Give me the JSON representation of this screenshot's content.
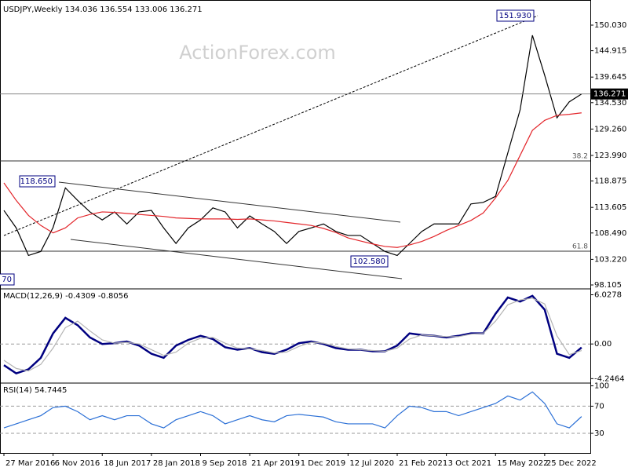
{
  "chart_data": [
    {
      "type": "line",
      "title": "USDJPY,Weekly  134.036 136.554 133.006 136.271",
      "watermark": "ActionForex.com",
      "x": [
        0,
        8,
        16,
        24,
        32,
        40,
        48,
        56,
        64,
        72,
        80,
        88,
        96,
        104,
        112,
        120,
        128,
        136,
        144,
        152,
        160,
        168,
        176,
        184,
        192,
        200,
        208,
        216,
        224,
        232,
        240,
        248,
        256,
        264,
        272,
        280,
        288,
        296,
        304,
        312,
        320,
        328,
        336,
        344,
        352,
        360,
        368,
        376
      ],
      "xlim": [
        -2.55,
        381.7
      ],
      "ylim": [
        97.32,
        155.05
      ],
      "yticks": [
        {
          "value": 150.03,
          "label": "150.030"
        },
        {
          "value": 144.915,
          "label": "144.915"
        },
        {
          "value": 139.645,
          "label": "139.645"
        },
        {
          "value": 134.53,
          "label": "134.530"
        },
        {
          "value": 129.26,
          "label": "129.260"
        },
        {
          "value": 123.99,
          "label": "123.990"
        },
        {
          "value": 118.875,
          "label": "118.875"
        },
        {
          "value": 113.605,
          "label": "113.605"
        },
        {
          "value": 108.49,
          "label": "108.490"
        },
        {
          "value": 103.22,
          "label": "103.220"
        },
        {
          "value": 98.105,
          "label": "98.105"
        }
      ],
      "series": [
        {
          "name": "USDJPY",
          "color": "#000000",
          "values": [
            113,
            109.5,
            104,
            104.8,
            109.6,
            117.5,
            115,
            112.7,
            111.1,
            112.7,
            110.3,
            112.7,
            113,
            109.5,
            106.4,
            109.5,
            111.1,
            113.5,
            112.7,
            109.5,
            111.9,
            110.3,
            108.8,
            106.4,
            108.8,
            109.5,
            110.3,
            108.8,
            108,
            108,
            106.4,
            104.8,
            104,
            106.4,
            108.8,
            110.3,
            110.3,
            110.3,
            114.3,
            114.6,
            115.8,
            124.5,
            133.1,
            148,
            140,
            131.5,
            134.7,
            136.271
          ]
        },
        {
          "name": "MA",
          "color": "#e3262b",
          "values": [
            118.5,
            115,
            112,
            110,
            108.5,
            109.5,
            111.5,
            112.2,
            112.7,
            112.6,
            112.4,
            112.2,
            112,
            111.8,
            111.5,
            111.4,
            111.3,
            111.3,
            111.3,
            111.2,
            111.3,
            111.1,
            110.9,
            110.6,
            110.3,
            110,
            109.4,
            108.6,
            107.5,
            106.9,
            106.3,
            105.8,
            105.6,
            106.1,
            106.8,
            107.8,
            109,
            110,
            111,
            112.5,
            115.5,
            119,
            124,
            129,
            131,
            132,
            132.2,
            132.5
          ]
        }
      ],
      "levels": [
        {
          "value": 122.9,
          "label": "38.2"
        },
        {
          "value": 104.85,
          "label": "61.8"
        }
      ],
      "annotations": [
        "118.650",
        "151.930",
        "102.580",
        "70"
      ]
    },
    {
      "type": "line",
      "title": "MACD(12,26,9) -0.4309 -0.8056",
      "x": [
        0,
        8,
        16,
        24,
        32,
        40,
        48,
        56,
        64,
        72,
        80,
        88,
        96,
        104,
        112,
        120,
        128,
        136,
        144,
        152,
        160,
        168,
        176,
        184,
        192,
        200,
        208,
        216,
        224,
        232,
        240,
        248,
        256,
        264,
        272,
        280,
        288,
        296,
        304,
        312,
        320,
        328,
        336,
        344,
        352,
        360,
        368,
        376
      ],
      "xlim": [
        -2.55,
        381.7
      ],
      "ylim": [
        -4.79,
        6.75
      ],
      "yticks": [
        6.0278,
        {
          "value": 0,
          "label": "0.00"
        },
        -4.2464
      ],
      "levels": [
        0
      ],
      "series": [
        {
          "name": "MACD",
          "color": "#000080",
          "values": [
            -2.6,
            -3.6,
            -3.1,
            -1.7,
            1.3,
            3.2,
            2.3,
            0.8,
            0,
            0.1,
            0.3,
            -0.2,
            -1.2,
            -1.7,
            -0.2,
            0.5,
            1.0,
            0.6,
            -0.4,
            -0.7,
            -0.5,
            -1.0,
            -1.2,
            -0.7,
            0.1,
            0.3,
            0,
            -0.5,
            -0.7,
            -0.7,
            -0.9,
            -0.9,
            -0.2,
            1.3,
            1.1,
            1.0,
            0.8,
            1.0,
            1.3,
            1.3,
            3.7,
            5.7,
            5.2,
            5.9,
            4.2,
            -1.2,
            -1.7,
            -0.4309
          ]
        },
        {
          "name": "Signal",
          "color": "#b4b4b4",
          "values": [
            -2.0,
            -3.0,
            -3.3,
            -2.5,
            -0.5,
            2.0,
            2.8,
            1.6,
            0.5,
            0.1,
            0.2,
            0.0,
            -0.7,
            -1.4,
            -1.0,
            0.1,
            0.7,
            0.8,
            0.1,
            -0.5,
            -0.6,
            -0.8,
            -1.1,
            -1.0,
            -0.3,
            0.2,
            0.1,
            -0.3,
            -0.6,
            -0.7,
            -0.8,
            -0.9,
            -0.5,
            0.6,
            1.1,
            1.0,
            0.9,
            0.9,
            1.2,
            1.3,
            2.8,
            4.8,
            5.4,
            5.6,
            4.9,
            1.0,
            -1.3,
            -0.8056
          ]
        }
      ]
    },
    {
      "type": "line",
      "title": "RSI(14) 54.7445",
      "x": [
        0,
        8,
        16,
        24,
        32,
        40,
        48,
        56,
        64,
        72,
        80,
        88,
        96,
        104,
        112,
        120,
        128,
        136,
        144,
        152,
        160,
        168,
        176,
        184,
        192,
        200,
        208,
        216,
        224,
        232,
        240,
        248,
        256,
        264,
        272,
        280,
        288,
        296,
        304,
        312,
        320,
        328,
        336,
        344,
        352,
        360,
        368,
        376
      ],
      "xlim": [
        -2.55,
        381.7
      ],
      "ylim": [
        0,
        104
      ],
      "yticks": [
        100,
        70,
        30
      ],
      "levels": [
        70,
        30
      ],
      "xticks": [
        {
          "value": 0,
          "label": "27 Mar 2016"
        },
        {
          "value": 32,
          "label": "6 Nov 2016"
        },
        {
          "value": 64,
          "label": "18 Jun 2017"
        },
        {
          "value": 96,
          "label": "28 Jan 2018"
        },
        {
          "value": 128,
          "label": "9 Sep 2018"
        },
        {
          "value": 160,
          "label": "21 Apr 2019"
        },
        {
          "value": 192,
          "label": "1 Dec 2019"
        },
        {
          "value": 224,
          "label": "12 Jul 2020"
        },
        {
          "value": 256,
          "label": "21 Feb 2021"
        },
        {
          "value": 288,
          "label": "3 Oct 2021"
        },
        {
          "value": 320,
          "label": "15 May 2022"
        },
        {
          "value": 352,
          "label": "25 Dec 2022"
        }
      ],
      "series": [
        {
          "name": "RSI",
          "color": "#2a6fd6",
          "values": [
            38,
            44,
            50,
            56,
            68,
            70,
            62,
            50,
            56,
            50,
            56,
            56,
            44,
            38,
            50,
            56,
            62,
            56,
            44,
            50,
            56,
            50,
            47,
            56,
            58,
            56,
            54,
            47,
            44,
            44,
            44,
            38,
            56,
            70,
            68,
            62,
            62,
            56,
            62,
            68,
            74,
            85,
            79,
            91,
            74,
            44,
            38,
            54.7445
          ]
        }
      ]
    }
  ]
}
